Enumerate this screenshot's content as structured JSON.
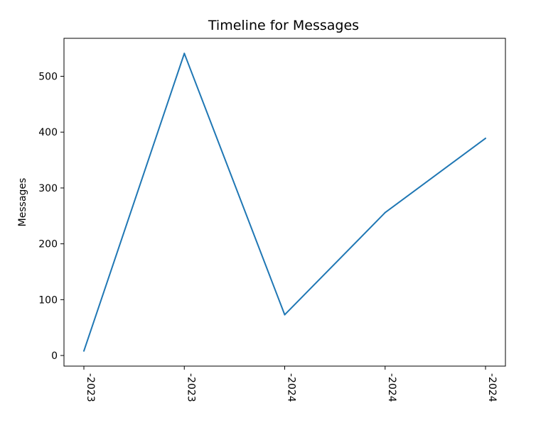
{
  "chart_data": {
    "type": "line",
    "title": "Timeline for Messages",
    "xlabel": "",
    "ylabel": "Messages",
    "categories": [
      "-2023",
      "-2023",
      "-2024",
      "-2024",
      "-2024"
    ],
    "series": [
      {
        "values": [
          8,
          541,
          73,
          256,
          389
        ],
        "color": "#1f77b4"
      }
    ],
    "ylim": [
      -19,
      568
    ],
    "yticks": [
      0,
      100,
      200,
      300,
      400,
      500
    ],
    "grid": false,
    "legend": "none"
  }
}
